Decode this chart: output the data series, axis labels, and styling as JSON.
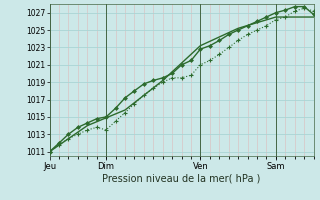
{
  "xlabel": "Pression niveau de la mer( hPa )",
  "bg_color": "#cce8e8",
  "grid_color": "#aad4d4",
  "line_color": "#2d6b2d",
  "spine_color": "#446644",
  "ylim": [
    1010.5,
    1028.0
  ],
  "yticks": [
    1011,
    1013,
    1015,
    1017,
    1019,
    1021,
    1023,
    1025,
    1027
  ],
  "day_labels": [
    "Jeu",
    "Dim",
    "Ven",
    "Sam"
  ],
  "day_positions": [
    0.0,
    0.214,
    0.571,
    0.857
  ],
  "xlim": [
    0.0,
    1.0
  ],
  "line1_x": [
    0.0,
    0.036,
    0.071,
    0.107,
    0.143,
    0.179,
    0.214,
    0.25,
    0.286,
    0.321,
    0.357,
    0.393,
    0.429,
    0.464,
    0.5,
    0.536,
    0.571,
    0.607,
    0.643,
    0.679,
    0.714,
    0.75,
    0.786,
    0.821,
    0.857,
    0.893,
    0.929,
    0.964,
    1.0
  ],
  "line1_y": [
    1011.0,
    1011.8,
    1012.5,
    1013.0,
    1013.5,
    1013.8,
    1013.5,
    1014.5,
    1015.5,
    1016.5,
    1017.5,
    1018.3,
    1019.0,
    1019.5,
    1019.5,
    1019.8,
    1021.0,
    1021.5,
    1022.2,
    1023.0,
    1023.8,
    1024.5,
    1025.0,
    1025.5,
    1026.2,
    1026.5,
    1027.2,
    1027.5,
    1027.2
  ],
  "line2_x": [
    0.0,
    0.036,
    0.071,
    0.107,
    0.143,
    0.179,
    0.214,
    0.25,
    0.286,
    0.321,
    0.357,
    0.393,
    0.429,
    0.464,
    0.5,
    0.536,
    0.571,
    0.607,
    0.643,
    0.679,
    0.714,
    0.75,
    0.786,
    0.821,
    0.857,
    0.893,
    0.929,
    0.964,
    1.0
  ],
  "line2_y": [
    1011.0,
    1012.0,
    1013.0,
    1013.8,
    1014.3,
    1014.8,
    1015.0,
    1016.0,
    1017.2,
    1018.0,
    1018.8,
    1019.2,
    1019.5,
    1020.0,
    1021.0,
    1021.5,
    1022.8,
    1023.2,
    1023.8,
    1024.5,
    1025.0,
    1025.5,
    1026.0,
    1026.5,
    1027.0,
    1027.3,
    1027.7,
    1027.7,
    1026.8
  ],
  "line3_x": [
    0.0,
    0.143,
    0.286,
    0.429,
    0.571,
    0.714,
    0.857,
    1.0
  ],
  "line3_y": [
    1011.0,
    1014.0,
    1015.8,
    1019.2,
    1023.2,
    1025.2,
    1026.5,
    1026.5
  ]
}
